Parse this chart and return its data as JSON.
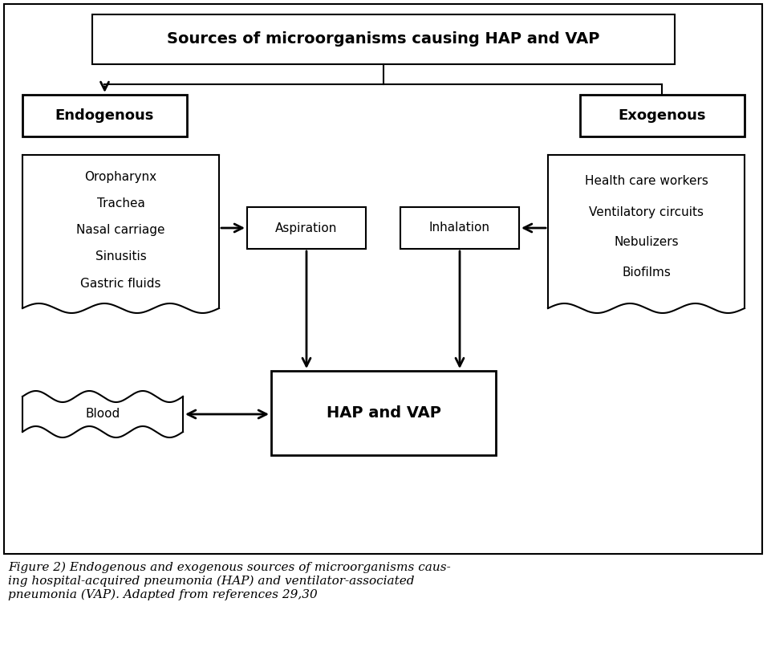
{
  "title": "Sources of microorganisms causing HAP and VAP",
  "endogenous_label": "Endogenous",
  "exogenous_label": "Exogenous",
  "aspiration_label": "Aspiration",
  "inhalation_label": "Inhalation",
  "hap_vap_label": "HAP and VAP",
  "blood_label": "Blood",
  "endo_items": [
    "Oropharynx",
    "Trachea",
    "Nasal carriage",
    "Sinusitis",
    "Gastric fluids"
  ],
  "exo_items": [
    "Health care workers",
    "Ventilatory circuits",
    "Nebulizers",
    "Biofilms"
  ],
  "caption": "Figure 2) Endogenous and exogenous sources of microorganisms caus-\ning hospital-acquired pneumonia (HAP) and ventilator-associated\npneumonia (VAP). Adapted from references 29,30",
  "bg_color": "#ffffff",
  "text_color": "#000000"
}
